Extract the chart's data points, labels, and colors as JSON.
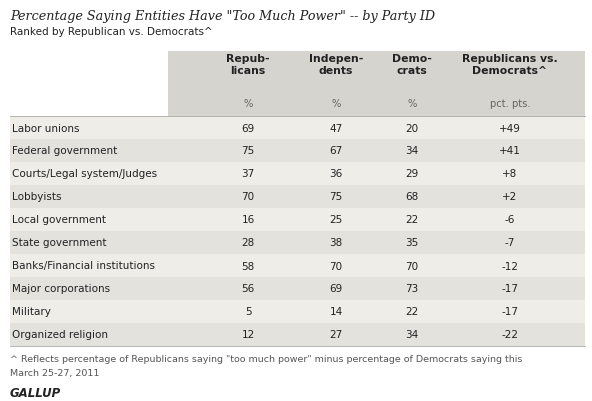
{
  "title": "Percentage Saying Entities Have \"Too Much Power\" -- by Party ID",
  "subtitle": "Ranked by Republican vs. Democrats^",
  "col_headers": [
    "Repub-\nlicans",
    "Indepen-\ndents",
    "Demo-\ncrats",
    "Republicans vs.\nDemocrats^"
  ],
  "col_subheaders": [
    "%",
    "%",
    "%",
    "pct. pts."
  ],
  "rows": [
    {
      "label": "Labor unions",
      "rep": "69",
      "ind": "47",
      "dem": "20",
      "diff": "+49"
    },
    {
      "label": "Federal government",
      "rep": "75",
      "ind": "67",
      "dem": "34",
      "diff": "+41"
    },
    {
      "label": "Courts/Legal system/Judges",
      "rep": "37",
      "ind": "36",
      "dem": "29",
      "diff": "+8"
    },
    {
      "label": "Lobbyists",
      "rep": "70",
      "ind": "75",
      "dem": "68",
      "diff": "+2"
    },
    {
      "label": "Local government",
      "rep": "16",
      "ind": "25",
      "dem": "22",
      "diff": "-6"
    },
    {
      "label": "State government",
      "rep": "28",
      "ind": "38",
      "dem": "35",
      "diff": "-7"
    },
    {
      "label": "Banks/Financial institutions",
      "rep": "58",
      "ind": "70",
      "dem": "70",
      "diff": "-12"
    },
    {
      "label": "Major corporations",
      "rep": "56",
      "ind": "69",
      "dem": "73",
      "diff": "-17"
    },
    {
      "label": "Military",
      "rep": "5",
      "ind": "14",
      "dem": "22",
      "diff": "-17"
    },
    {
      "label": "Organized religion",
      "rep": "12",
      "ind": "27",
      "dem": "34",
      "diff": "-22"
    }
  ],
  "footer_line1": "^ Reflects percentage of Republicans saying \"too much power\" minus percentage of Democrats saying this",
  "footer_line2": "March 25-27, 2011",
  "gallup_label": "GALLUP",
  "bg_color_even": "#eeede8",
  "bg_color_odd": "#e3e2dd",
  "header_bg": "#d6d4ce",
  "subheader_bg": "#d6d4ce",
  "title_color": "#222222",
  "text_color": "#222222",
  "subtext_color": "#555555",
  "white_bg": "#ffffff"
}
